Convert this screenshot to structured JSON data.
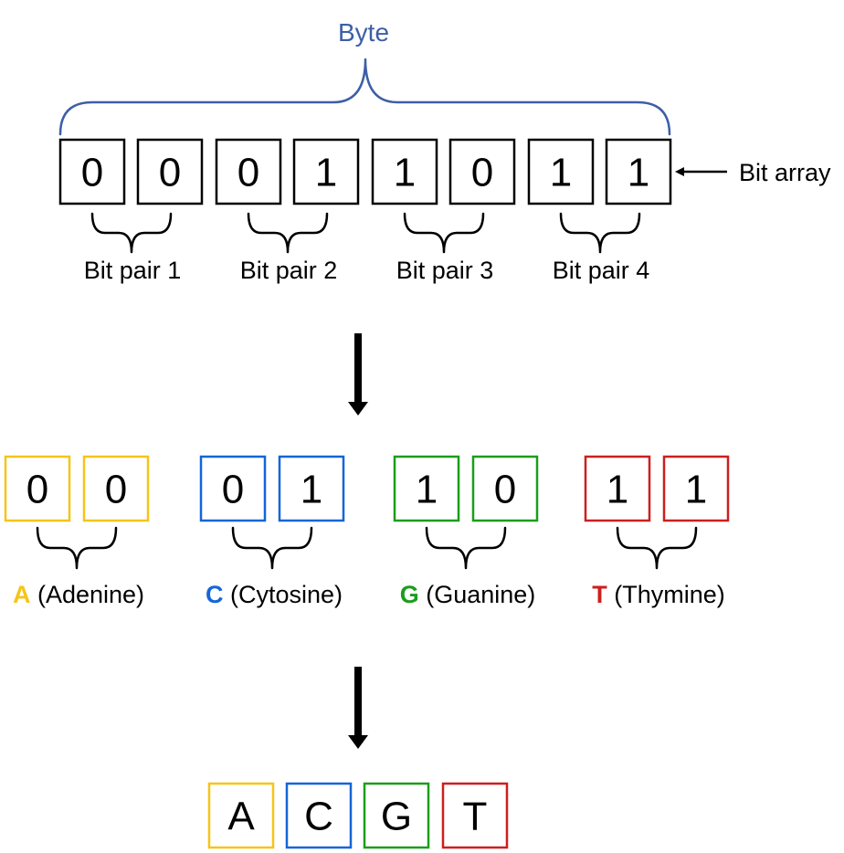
{
  "byte_label": "Byte",
  "bit_array_label": "Bit array",
  "colors": {
    "byte": "#3d5fa6",
    "black": "#000000",
    "A": "#f5c518",
    "C": "#1565d8",
    "G": "#1a9e1a",
    "T": "#cc1f1f"
  },
  "bits": [
    "0",
    "0",
    "0",
    "1",
    "1",
    "0",
    "1",
    "1"
  ],
  "pair_labels": [
    "Bit pair 1",
    "Bit pair 2",
    "Bit pair 3",
    "Bit pair 4"
  ],
  "nucleotides": [
    {
      "letter": "A",
      "name": "(Adenine)",
      "bits": [
        "0",
        "0"
      ],
      "color_key": "A"
    },
    {
      "letter": "C",
      "name": "(Cytosine)",
      "bits": [
        "0",
        "1"
      ],
      "color_key": "C"
    },
    {
      "letter": "G",
      "name": "(Guanine)",
      "bits": [
        "1",
        "0"
      ],
      "color_key": "G"
    },
    {
      "letter": "T",
      "name": "(Thymine)",
      "bits": [
        "1",
        "1"
      ],
      "color_key": "T"
    }
  ],
  "sequence": [
    "A",
    "C",
    "G",
    "T"
  ]
}
